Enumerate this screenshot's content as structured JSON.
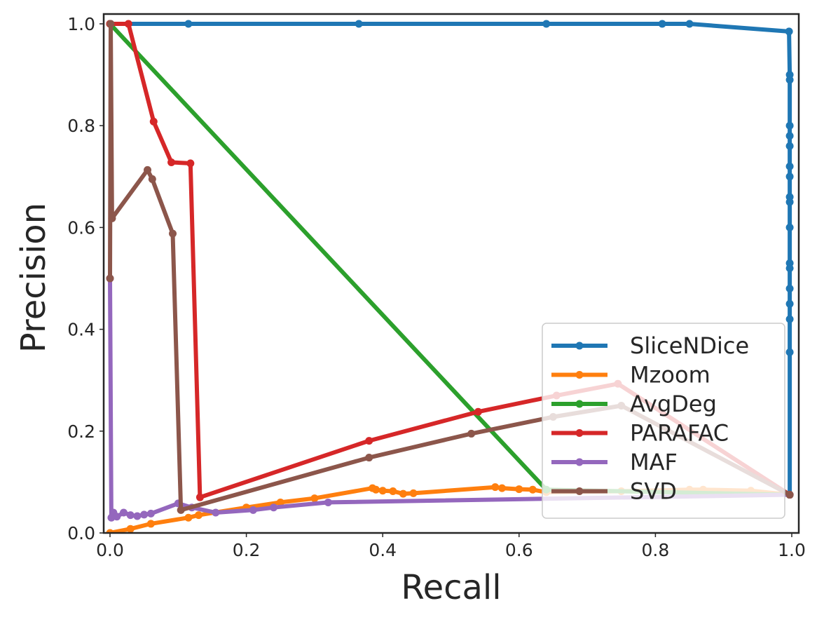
{
  "chart_data": {
    "type": "line",
    "title": "",
    "xlabel": "Recall",
    "ylabel": "Precision",
    "xlim": [
      0.0,
      1.0
    ],
    "ylim": [
      0.0,
      1.0
    ],
    "xticks": [
      "0.0",
      "0.2",
      "0.4",
      "0.6",
      "0.8",
      "1.0"
    ],
    "yticks": [
      "0.0",
      "0.2",
      "0.4",
      "0.6",
      "0.8",
      "1.0"
    ],
    "grid": false,
    "legend_position": "lower-right",
    "series": [
      {
        "name": "SliceNDice",
        "color": "#1f77b4",
        "points": [
          [
            0.0,
            1.0
          ],
          [
            0.115,
            1.0
          ],
          [
            0.365,
            1.0
          ],
          [
            0.64,
            1.0
          ],
          [
            0.81,
            1.0
          ],
          [
            0.85,
            1.0
          ],
          [
            0.996,
            0.985
          ],
          [
            0.997,
            0.9
          ],
          [
            0.997,
            0.89
          ],
          [
            0.997,
            0.8
          ],
          [
            0.997,
            0.78
          ],
          [
            0.997,
            0.76
          ],
          [
            0.997,
            0.72
          ],
          [
            0.997,
            0.7
          ],
          [
            0.997,
            0.66
          ],
          [
            0.997,
            0.65
          ],
          [
            0.997,
            0.6
          ],
          [
            0.997,
            0.53
          ],
          [
            0.997,
            0.52
          ],
          [
            0.997,
            0.48
          ],
          [
            0.997,
            0.45
          ],
          [
            0.997,
            0.42
          ],
          [
            0.997,
            0.355
          ],
          [
            0.997,
            0.075
          ]
        ]
      },
      {
        "name": "Mzoom",
        "color": "#ff7f0e",
        "points": [
          [
            0.0,
            0.0
          ],
          [
            0.03,
            0.008
          ],
          [
            0.06,
            0.018
          ],
          [
            0.115,
            0.03
          ],
          [
            0.13,
            0.035
          ],
          [
            0.2,
            0.05
          ],
          [
            0.25,
            0.06
          ],
          [
            0.3,
            0.068
          ],
          [
            0.385,
            0.088
          ],
          [
            0.39,
            0.085
          ],
          [
            0.4,
            0.083
          ],
          [
            0.415,
            0.082
          ],
          [
            0.43,
            0.077
          ],
          [
            0.445,
            0.078
          ],
          [
            0.565,
            0.09
          ],
          [
            0.575,
            0.088
          ],
          [
            0.6,
            0.086
          ],
          [
            0.62,
            0.085
          ],
          [
            0.64,
            0.08
          ],
          [
            0.75,
            0.082
          ],
          [
            0.85,
            0.085
          ],
          [
            0.87,
            0.085
          ],
          [
            0.94,
            0.083
          ],
          [
            0.997,
            0.075
          ]
        ]
      },
      {
        "name": "AvgDeg",
        "color": "#2ca02c",
        "points": [
          [
            0.0,
            1.0
          ],
          [
            0.64,
            0.085
          ],
          [
            0.997,
            0.075
          ]
        ]
      },
      {
        "name": "PARAFAC",
        "color": "#d62728",
        "points": [
          [
            0.0,
            1.0
          ],
          [
            0.027,
            1.0
          ],
          [
            0.064,
            0.808
          ],
          [
            0.09,
            0.728
          ],
          [
            0.118,
            0.726
          ],
          [
            0.132,
            0.07
          ],
          [
            0.38,
            0.181
          ],
          [
            0.54,
            0.238
          ],
          [
            0.655,
            0.27
          ],
          [
            0.745,
            0.293
          ],
          [
            0.997,
            0.075
          ]
        ]
      },
      {
        "name": "MAF",
        "color": "#9467bd",
        "points": [
          [
            0.0,
            0.5
          ],
          [
            0.002,
            0.03
          ],
          [
            0.005,
            0.04
          ],
          [
            0.01,
            0.032
          ],
          [
            0.02,
            0.04
          ],
          [
            0.03,
            0.035
          ],
          [
            0.04,
            0.033
          ],
          [
            0.05,
            0.036
          ],
          [
            0.06,
            0.038
          ],
          [
            0.1,
            0.058
          ],
          [
            0.12,
            0.05
          ],
          [
            0.155,
            0.04
          ],
          [
            0.21,
            0.045
          ],
          [
            0.24,
            0.05
          ],
          [
            0.32,
            0.06
          ],
          [
            0.997,
            0.075
          ]
        ]
      },
      {
        "name": "SVD",
        "color": "#8c564b",
        "points": [
          [
            0.0,
            0.5
          ],
          [
            0.001,
            1.0
          ],
          [
            0.003,
            0.618
          ],
          [
            0.055,
            0.713
          ],
          [
            0.062,
            0.695
          ],
          [
            0.092,
            0.588
          ],
          [
            0.104,
            0.045
          ],
          [
            0.38,
            0.148
          ],
          [
            0.53,
            0.195
          ],
          [
            0.65,
            0.228
          ],
          [
            0.75,
            0.25
          ],
          [
            0.997,
            0.075
          ]
        ]
      }
    ]
  }
}
